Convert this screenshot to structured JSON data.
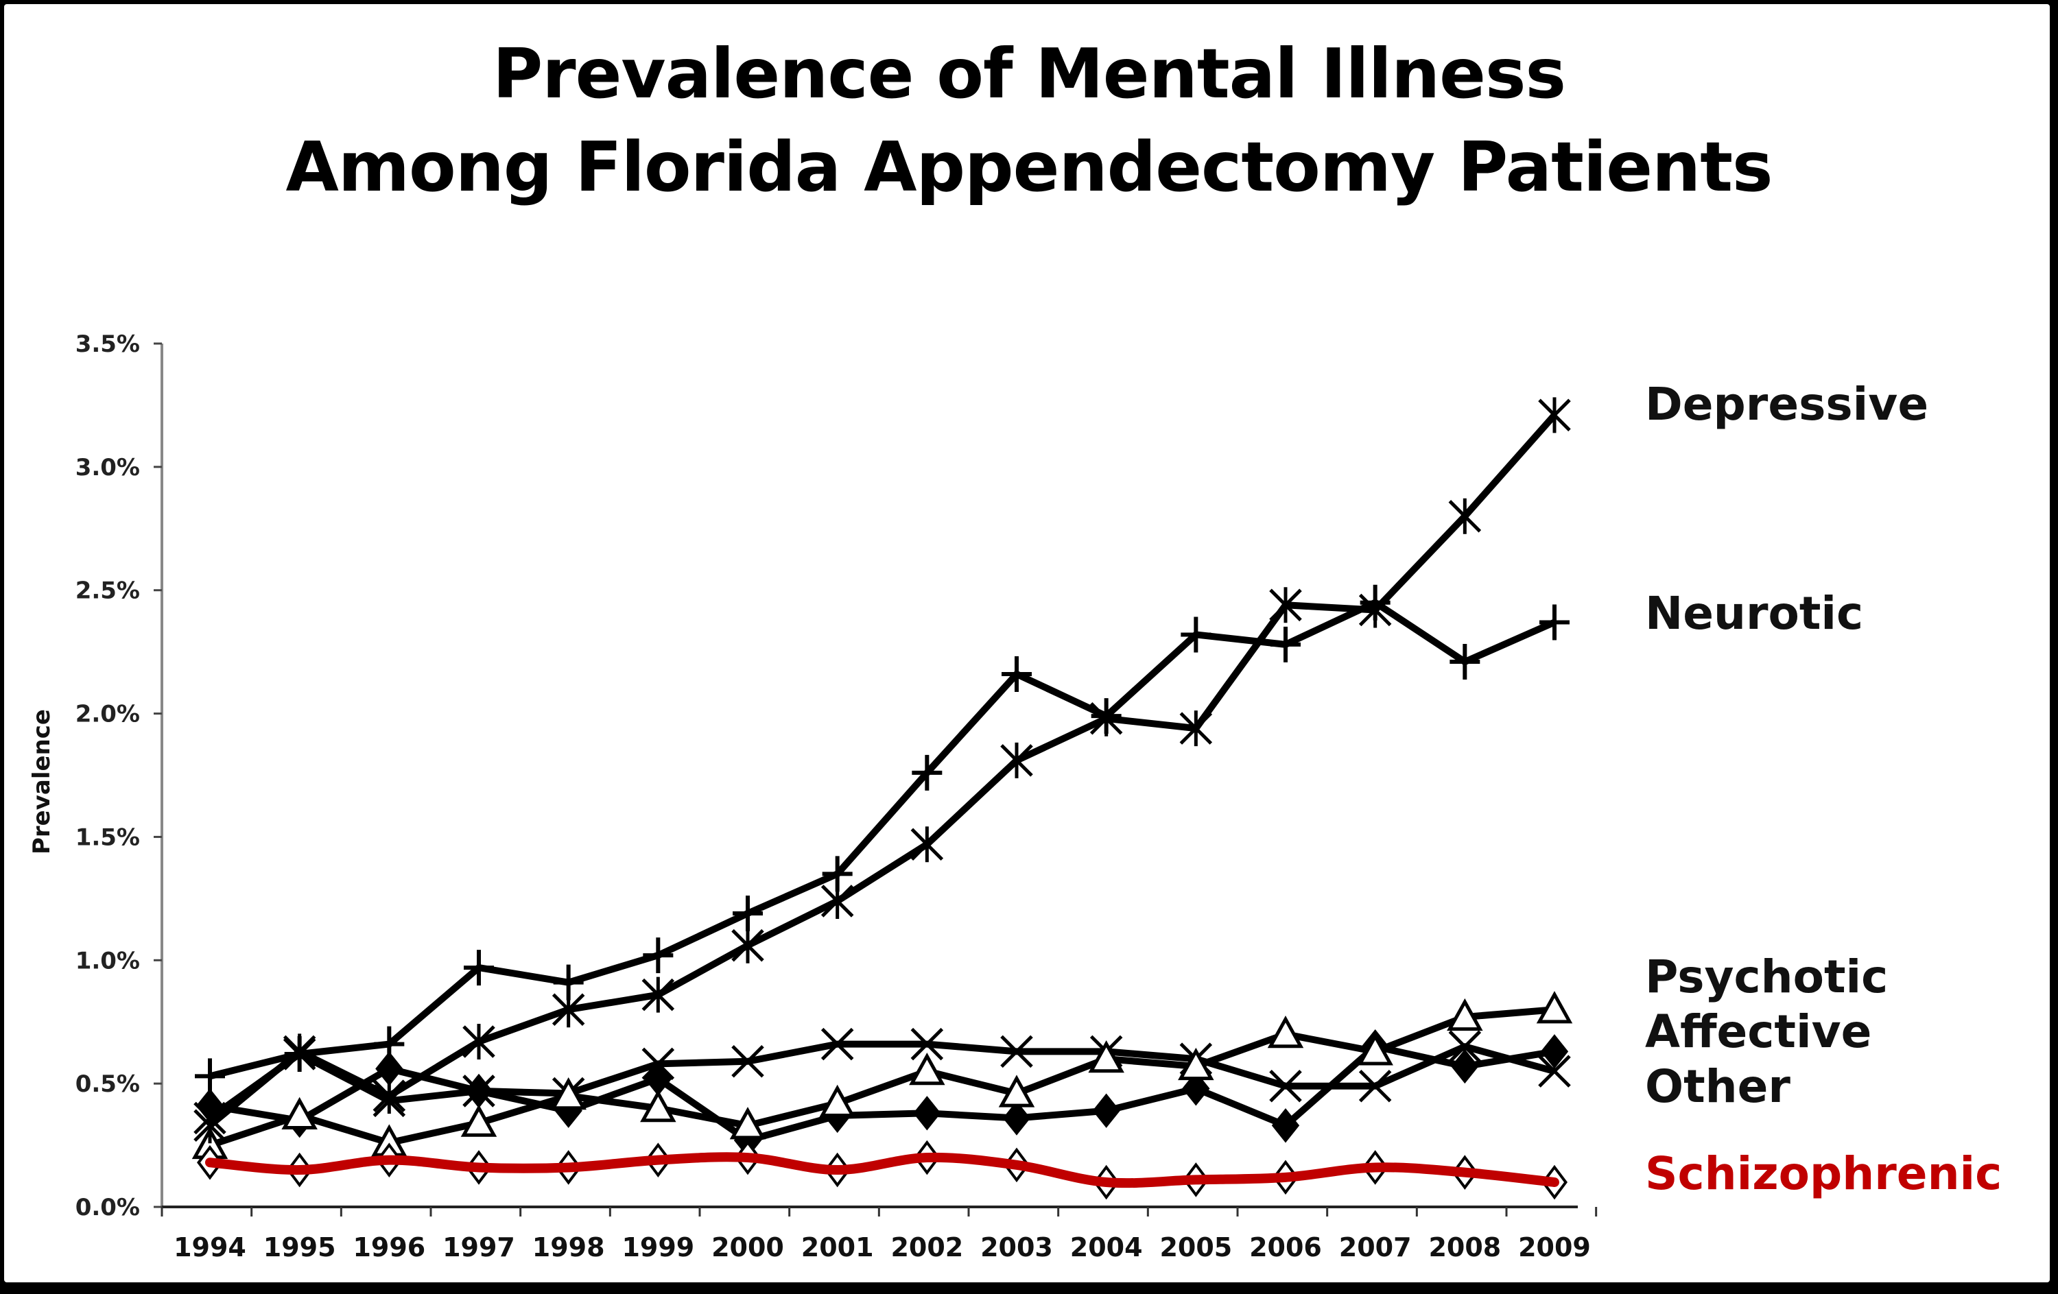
{
  "title_line1": "Prevalence of Mental Illness",
  "title_line2": "Among Florida Appendectomy Patients",
  "chart_data": {
    "type": "line",
    "title": "Prevalence of Mental Illness Among Florida Appendectomy Patients",
    "xlabel": "",
    "ylabel": "Prevalence",
    "ylim": [
      0,
      3.5
    ],
    "y_ticks": [
      "0.0%",
      "0.5%",
      "1.0%",
      "1.5%",
      "2.0%",
      "2.5%",
      "3.0%",
      "3.5%"
    ],
    "y_tick_values": [
      0,
      0.5,
      1.0,
      1.5,
      2.0,
      2.5,
      3.0,
      3.5
    ],
    "categories": [
      "1994",
      "1995",
      "1996",
      "1997",
      "1998",
      "1999",
      "2000",
      "2001",
      "2002",
      "2003",
      "2004",
      "2005",
      "2006",
      "2007",
      "2008",
      "2009"
    ],
    "grid": false,
    "legend": "direct labels at right",
    "series": [
      {
        "name": "Depressive",
        "marker": "x-star",
        "color": "#000000",
        "values": [
          0.33,
          0.63,
          0.45,
          0.67,
          0.8,
          0.86,
          1.06,
          1.24,
          1.47,
          1.81,
          1.98,
          1.94,
          2.44,
          2.42,
          2.8,
          3.21
        ]
      },
      {
        "name": "Neurotic",
        "marker": "plus",
        "color": "#000000",
        "values": [
          0.53,
          0.62,
          0.66,
          0.97,
          0.91,
          1.02,
          1.19,
          1.35,
          1.76,
          2.16,
          1.99,
          2.32,
          2.28,
          2.45,
          2.21,
          2.37
        ]
      },
      {
        "name": "Psychotic",
        "marker": "triangle",
        "color": "#000000",
        "values": [
          0.25,
          0.37,
          0.26,
          0.34,
          0.45,
          0.4,
          0.33,
          0.42,
          0.55,
          0.46,
          0.6,
          0.57,
          0.7,
          0.63,
          0.77,
          0.8
        ]
      },
      {
        "name": "Affective",
        "marker": "diamond-filled",
        "color": "#000000",
        "values": [
          0.41,
          0.35,
          0.56,
          0.47,
          0.39,
          0.52,
          0.27,
          0.37,
          0.38,
          0.36,
          0.39,
          0.48,
          0.33,
          0.65,
          0.57,
          0.63
        ]
      },
      {
        "name": "Other",
        "marker": "x",
        "color": "#000000",
        "values": [
          0.36,
          0.62,
          0.43,
          0.47,
          0.46,
          0.58,
          0.59,
          0.66,
          0.66,
          0.63,
          0.63,
          0.6,
          0.49,
          0.49,
          0.65,
          0.55
        ]
      },
      {
        "name": "Schizophrenic",
        "marker": "diamond-open",
        "color": "#c00000",
        "values": [
          0.18,
          0.15,
          0.19,
          0.16,
          0.16,
          0.19,
          0.2,
          0.15,
          0.2,
          0.17,
          0.1,
          0.11,
          0.12,
          0.16,
          0.14,
          0.1
        ]
      }
    ]
  }
}
